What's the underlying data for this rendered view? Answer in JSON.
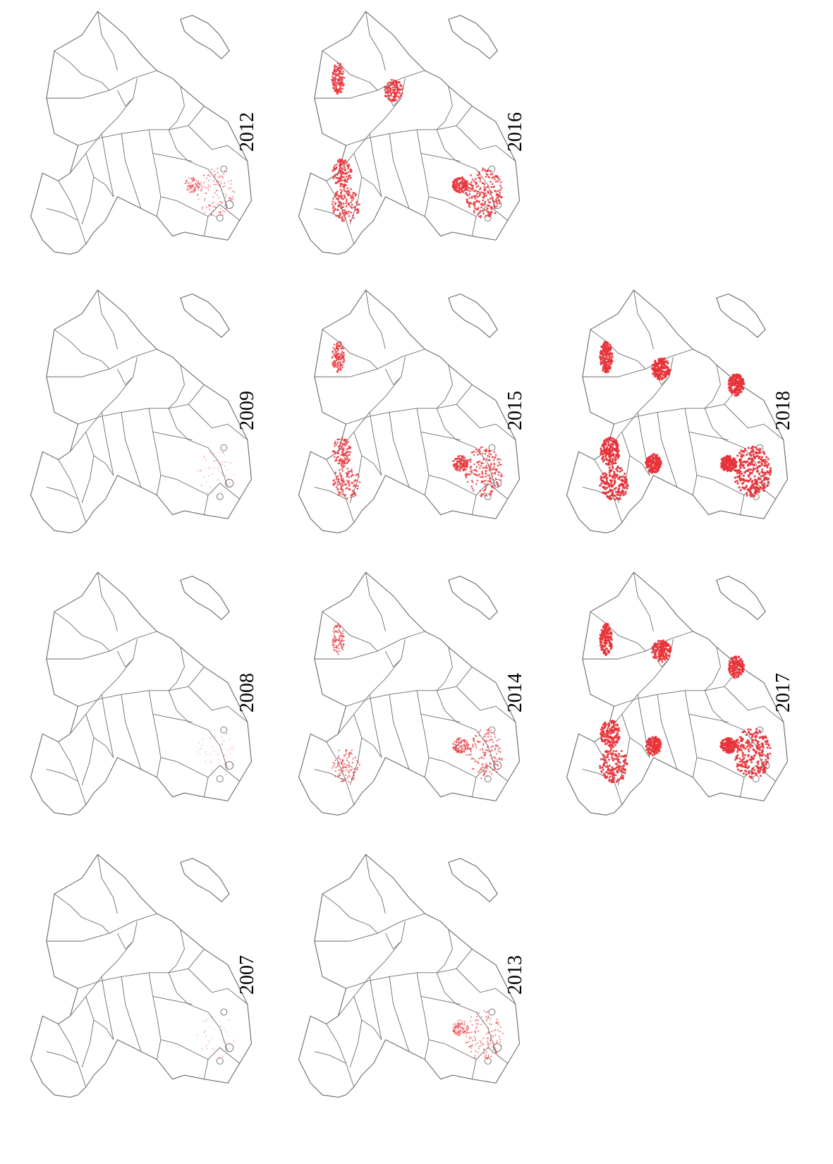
{
  "colors": {
    "border": "#6b6b6b",
    "spread": "#e8333a"
  },
  "panels": [
    {
      "year": "2007",
      "col": 0,
      "row": 3,
      "intensity": 0.1
    },
    {
      "year": "2008",
      "col": 0,
      "row": 2,
      "intensity": 0.12
    },
    {
      "year": "2009",
      "col": 0,
      "row": 1,
      "intensity": 0.15
    },
    {
      "year": "2012",
      "col": 0,
      "row": 0,
      "intensity": 0.4
    },
    {
      "year": "2013",
      "col": 1,
      "row": 3,
      "intensity": 0.45
    },
    {
      "year": "2014",
      "col": 1,
      "row": 2,
      "intensity": 0.55
    },
    {
      "year": "2015",
      "col": 1,
      "row": 1,
      "intensity": 0.7
    },
    {
      "year": "2016",
      "col": 1,
      "row": 0,
      "intensity": 0.8
    },
    {
      "year": "2017",
      "col": 2,
      "row": 2,
      "intensity": 0.95
    },
    {
      "year": "2018",
      "col": 2,
      "row": 1,
      "intensity": 1.0
    }
  ]
}
